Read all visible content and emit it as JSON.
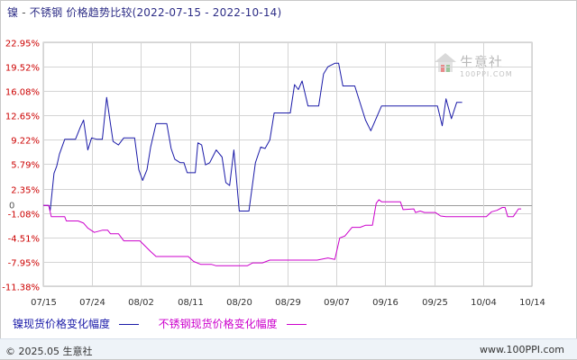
{
  "header": {
    "series_a": "镍",
    "separator": "-",
    "series_b": "不锈钢",
    "subject": "价格趋势比较",
    "date_range": "(2022-07-15 - 2022-10-14)"
  },
  "legend": {
    "nickel_label": "镍现货价格变化幅度",
    "ss_label": "不锈钢现货价格变化幅度"
  },
  "footer": {
    "copyright": "© 2025.05 生意社",
    "site": "www.100PPI.com"
  },
  "watermark": {
    "text": "生意社",
    "url": "100PPI.COM"
  },
  "colors": {
    "nickel": "#1a1aa8",
    "stainless": "#cc00cc",
    "grid": "#d4d4d4",
    "axis_label": "#cc0000"
  },
  "chart_data": {
    "type": "line",
    "ylim": [
      -11.38,
      22.95
    ],
    "y_ticks": [
      "22.95%",
      "19.52%",
      "16.08%",
      "12.65%",
      "9.22%",
      "5.79%",
      "2.35%",
      "-1.08%",
      "-4.51%",
      "-7.95%",
      "-11.38%"
    ],
    "y_tick_values": [
      22.95,
      19.52,
      16.08,
      12.65,
      9.22,
      5.79,
      2.35,
      -1.08,
      -4.51,
      -7.95,
      -11.38
    ],
    "zero_tick": "0",
    "x_ticks": [
      "07/15",
      "07/24",
      "08/02",
      "08/11",
      "08/20",
      "08/29",
      "09/07",
      "09/16",
      "09/25",
      "10/04",
      "10/14"
    ],
    "x_range_days": [
      0,
      91
    ],
    "grid": true,
    "series": [
      {
        "name": "镍现货价格变化幅度",
        "color": "#1a1aa8",
        "points": [
          [
            0,
            0.0
          ],
          [
            1,
            0.0
          ],
          [
            1.3,
            -0.7
          ],
          [
            2,
            4.5
          ],
          [
            2.5,
            5.5
          ],
          [
            3,
            7.2
          ],
          [
            4,
            9.3
          ],
          [
            6,
            9.3
          ],
          [
            7,
            11.2
          ],
          [
            7.5,
            12.0
          ],
          [
            8.3,
            7.8
          ],
          [
            9,
            9.5
          ],
          [
            10,
            9.3
          ],
          [
            11,
            9.3
          ],
          [
            11.8,
            15.2
          ],
          [
            12.5,
            11.5
          ],
          [
            13,
            9.0
          ],
          [
            14,
            8.5
          ],
          [
            15,
            9.5
          ],
          [
            17,
            9.5
          ],
          [
            17.8,
            5.0
          ],
          [
            18.5,
            3.5
          ],
          [
            19.3,
            5.0
          ],
          [
            20,
            8.2
          ],
          [
            21,
            11.5
          ],
          [
            23,
            11.5
          ],
          [
            23.8,
            8.0
          ],
          [
            24.5,
            6.5
          ],
          [
            25.5,
            6.0
          ],
          [
            26.2,
            6.0
          ],
          [
            26.8,
            4.6
          ],
          [
            28.3,
            4.6
          ],
          [
            28.8,
            8.8
          ],
          [
            29.5,
            8.5
          ],
          [
            30.2,
            5.7
          ],
          [
            31,
            6.0
          ],
          [
            32.2,
            7.8
          ],
          [
            33.3,
            6.8
          ],
          [
            34,
            3.2
          ],
          [
            34.7,
            2.8
          ],
          [
            35.5,
            7.8
          ],
          [
            36.5,
            -0.8
          ],
          [
            38.3,
            -0.8
          ],
          [
            39.5,
            6.0
          ],
          [
            40.5,
            8.2
          ],
          [
            41.3,
            8.0
          ],
          [
            42.2,
            9.2
          ],
          [
            43,
            13.0
          ],
          [
            46,
            13.0
          ],
          [
            46.8,
            17.0
          ],
          [
            47.5,
            16.3
          ],
          [
            48.2,
            17.5
          ],
          [
            49.3,
            14.0
          ],
          [
            51.3,
            14.0
          ],
          [
            52.2,
            18.5
          ],
          [
            53,
            19.5
          ],
          [
            54.3,
            20.0
          ],
          [
            55,
            20.0
          ],
          [
            55.8,
            16.8
          ],
          [
            58,
            16.8
          ],
          [
            60,
            12.0
          ],
          [
            61,
            10.5
          ],
          [
            63,
            14.0
          ],
          [
            73,
            14.0
          ],
          [
            73.4,
            14.0
          ],
          [
            74.3,
            11.2
          ],
          [
            75,
            15.0
          ],
          [
            76,
            12.2
          ],
          [
            77,
            14.5
          ],
          [
            78,
            14.5
          ]
        ]
      },
      {
        "name": "不锈钢现货价格变化幅度",
        "color": "#cc00cc",
        "points": [
          [
            0,
            0.0
          ],
          [
            1,
            0.0
          ],
          [
            1.5,
            -1.6
          ],
          [
            4,
            -1.6
          ],
          [
            4.3,
            -2.2
          ],
          [
            6.5,
            -2.2
          ],
          [
            7.5,
            -2.5
          ],
          [
            8.3,
            -3.2
          ],
          [
            9.5,
            -3.8
          ],
          [
            11,
            -3.5
          ],
          [
            12,
            -3.5
          ],
          [
            12.5,
            -4.0
          ],
          [
            14,
            -4.0
          ],
          [
            15,
            -5.0
          ],
          [
            18,
            -5.0
          ],
          [
            20,
            -6.5
          ],
          [
            21,
            -7.2
          ],
          [
            27,
            -7.2
          ],
          [
            28,
            -7.9
          ],
          [
            29.3,
            -8.3
          ],
          [
            31.3,
            -8.3
          ],
          [
            32.2,
            -8.5
          ],
          [
            38,
            -8.5
          ],
          [
            39,
            -8.1
          ],
          [
            40.8,
            -8.1
          ],
          [
            42.2,
            -7.7
          ],
          [
            51,
            -7.7
          ],
          [
            53,
            -7.4
          ],
          [
            54.3,
            -7.6
          ],
          [
            55.2,
            -4.6
          ],
          [
            56.2,
            -4.3
          ],
          [
            57.5,
            -3.1
          ],
          [
            59,
            -3.1
          ],
          [
            60,
            -2.8
          ],
          [
            61.3,
            -2.8
          ],
          [
            62,
            0.3
          ],
          [
            62.5,
            0.8
          ],
          [
            63,
            0.5
          ],
          [
            66.5,
            0.5
          ],
          [
            67,
            -0.6
          ],
          [
            69,
            -0.5
          ],
          [
            69.3,
            -1.0
          ],
          [
            70.2,
            -0.8
          ],
          [
            71,
            -1.0
          ],
          [
            73,
            -1.0
          ],
          [
            74,
            -1.5
          ],
          [
            75,
            -1.6
          ],
          [
            82.5,
            -1.6
          ],
          [
            83.5,
            -0.9
          ],
          [
            84.5,
            -0.7
          ],
          [
            85.5,
            -0.3
          ],
          [
            86,
            -0.3
          ],
          [
            86.5,
            -1.6
          ],
          [
            87.5,
            -1.6
          ],
          [
            88.5,
            -0.5
          ],
          [
            89,
            -0.5
          ]
        ]
      }
    ]
  }
}
